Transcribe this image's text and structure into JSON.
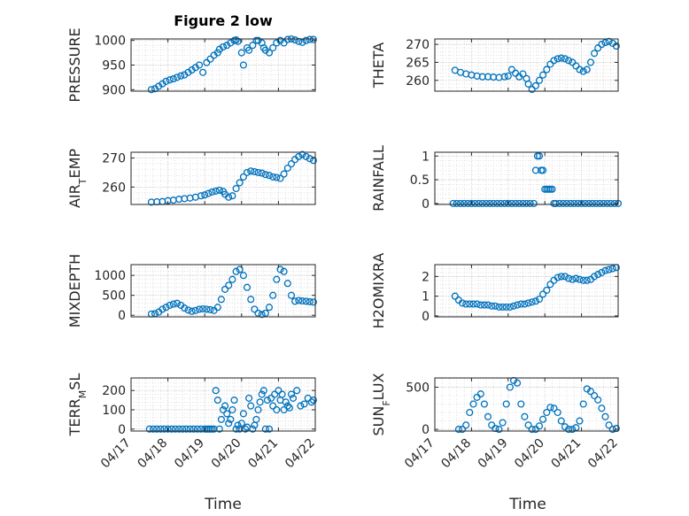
{
  "figure": {
    "title": "Figure 2 low",
    "marker_color": "#0072BD",
    "grid": "on (major and minor, dotted)",
    "x_axis": {
      "label": "Time",
      "range": [
        "04/17",
        "04/22"
      ],
      "ticks": [
        "04/17",
        "04/18",
        "04/19",
        "04/20",
        "04/21",
        "04/22"
      ]
    }
  },
  "chart_data": [
    {
      "type": "scatter",
      "ylabel": "PRESSURE",
      "ylim": [
        897,
        1003
      ],
      "yticks": [
        900,
        950,
        1000
      ],
      "x": [
        0.55,
        0.65,
        0.75,
        0.85,
        0.95,
        1.05,
        1.15,
        1.25,
        1.35,
        1.45,
        1.55,
        1.65,
        1.75,
        1.85,
        1.95,
        2.05,
        2.15,
        2.25,
        2.35,
        2.4,
        2.5,
        2.6,
        2.7,
        2.8,
        2.85,
        2.9,
        3.0,
        3.05,
        3.15,
        3.2,
        3.3,
        3.4,
        3.45,
        3.55,
        3.6,
        3.65,
        3.75,
        3.85,
        3.95,
        4.05,
        4.15,
        4.25,
        4.35,
        4.45,
        4.55,
        4.65,
        4.75,
        4.85,
        4.95
      ],
      "y": [
        900,
        902,
        907,
        912,
        917,
        920,
        922,
        925,
        928,
        930,
        935,
        940,
        945,
        950,
        935,
        955,
        962,
        970,
        975,
        982,
        987,
        990,
        995,
        1000,
        1001,
        998,
        975,
        950,
        985,
        980,
        990,
        1000,
        1000,
        995,
        985,
        980,
        975,
        985,
        995,
        1000,
        995,
        1002,
        1003,
        1001,
        998,
        996,
        1000,
        1002,
        1002
      ]
    },
    {
      "type": "scatter",
      "ylabel": "THETA",
      "ylim": [
        257,
        271.5
      ],
      "yticks": [
        260,
        265,
        270
      ],
      "x": [
        0.55,
        0.7,
        0.85,
        1.0,
        1.15,
        1.3,
        1.45,
        1.6,
        1.75,
        1.9,
        2.0,
        2.1,
        2.2,
        2.3,
        2.4,
        2.5,
        2.55,
        2.65,
        2.75,
        2.85,
        2.95,
        3.05,
        3.15,
        3.25,
        3.35,
        3.45,
        3.55,
        3.65,
        3.75,
        3.85,
        3.95,
        4.05,
        4.15,
        4.25,
        4.35,
        4.45,
        4.55,
        4.65,
        4.75,
        4.85,
        4.95
      ],
      "y": [
        262.8,
        262.2,
        261.8,
        261.5,
        261.2,
        261.0,
        261.0,
        260.9,
        260.8,
        261.0,
        261.2,
        263.0,
        262.0,
        261.0,
        261.8,
        260.5,
        259.0,
        257.5,
        258.5,
        260.0,
        261.5,
        263.0,
        264.5,
        265.5,
        266.0,
        266.2,
        266.0,
        265.5,
        265.0,
        264.0,
        263.0,
        262.5,
        263.0,
        265.0,
        267.5,
        269.0,
        270.0,
        270.5,
        270.8,
        270.3,
        269.5
      ]
    },
    {
      "type": "scatter",
      "ylabel": "AIR_TEMP",
      "ylim": [
        254,
        272
      ],
      "yticks": [
        260,
        270
      ],
      "x": [
        0.55,
        0.7,
        0.85,
        1.0,
        1.15,
        1.3,
        1.45,
        1.6,
        1.75,
        1.9,
        2.0,
        2.1,
        2.2,
        2.3,
        2.4,
        2.5,
        2.55,
        2.65,
        2.75,
        2.85,
        2.95,
        3.05,
        3.15,
        3.25,
        3.35,
        3.45,
        3.55,
        3.65,
        3.75,
        3.85,
        3.95,
        4.05,
        4.15,
        4.25,
        4.35,
        4.45,
        4.55,
        4.65,
        4.75,
        4.85,
        4.95
      ],
      "y": [
        254.8,
        254.9,
        255.0,
        255.3,
        255.5,
        255.8,
        256.0,
        256.2,
        256.5,
        257.0,
        257.3,
        257.8,
        258.3,
        258.6,
        258.9,
        258.5,
        257.5,
        256.5,
        257.0,
        259.5,
        261.5,
        263.5,
        265.0,
        265.5,
        265.3,
        265.0,
        264.8,
        264.3,
        264.0,
        263.5,
        263.3,
        263.0,
        264.5,
        266.5,
        268.0,
        269.5,
        270.5,
        271.2,
        270.5,
        269.8,
        269.2
      ]
    },
    {
      "type": "scatter",
      "ylabel": "RAINFALL",
      "ylim": [
        -0.02,
        1.08
      ],
      "yticks": [
        0,
        0.5,
        1
      ],
      "x": [
        0.5,
        0.6,
        0.7,
        0.8,
        0.9,
        1.0,
        1.1,
        1.2,
        1.3,
        1.4,
        1.5,
        1.6,
        1.7,
        1.8,
        1.9,
        2.0,
        2.1,
        2.2,
        2.3,
        2.4,
        2.5,
        2.6,
        2.7,
        2.75,
        2.8,
        2.85,
        2.9,
        2.95,
        3.0,
        3.05,
        3.1,
        3.15,
        3.2,
        3.25,
        3.3,
        3.4,
        3.5,
        3.6,
        3.7,
        3.8,
        3.9,
        4.0,
        4.1,
        4.2,
        4.3,
        4.4,
        4.5,
        4.6,
        4.7,
        4.8,
        4.9,
        5.0
      ],
      "y": [
        0,
        0,
        0,
        0,
        0,
        0,
        0,
        0,
        0,
        0,
        0,
        0,
        0,
        0,
        0,
        0,
        0,
        0,
        0,
        0,
        0,
        0,
        0,
        0.7,
        1.0,
        1.0,
        0.7,
        0.7,
        0.3,
        0.3,
        0.3,
        0.3,
        0.3,
        0,
        0,
        0,
        0,
        0,
        0,
        0,
        0,
        0,
        0,
        0,
        0,
        0,
        0,
        0,
        0,
        0,
        0,
        0
      ]
    },
    {
      "type": "scatter",
      "ylabel": "MIXDEPTH",
      "ylim": [
        -40,
        1270
      ],
      "yticks": [
        0,
        500,
        1000
      ],
      "x": [
        0.55,
        0.65,
        0.75,
        0.85,
        0.95,
        1.05,
        1.15,
        1.25,
        1.35,
        1.45,
        1.55,
        1.65,
        1.75,
        1.85,
        1.95,
        2.05,
        2.15,
        2.25,
        2.35,
        2.45,
        2.55,
        2.65,
        2.75,
        2.85,
        2.95,
        3.05,
        3.15,
        3.25,
        3.35,
        3.45,
        3.55,
        3.65,
        3.75,
        3.85,
        3.95,
        4.05,
        4.15,
        4.25,
        4.35,
        4.45,
        4.55,
        4.65,
        4.75,
        4.85,
        4.95
      ],
      "y": [
        30,
        40,
        80,
        150,
        200,
        250,
        280,
        300,
        250,
        180,
        130,
        100,
        120,
        150,
        160,
        150,
        140,
        120,
        200,
        400,
        650,
        750,
        900,
        1100,
        1150,
        1000,
        700,
        400,
        150,
        50,
        20,
        50,
        200,
        500,
        900,
        1150,
        1100,
        800,
        500,
        350,
        370,
        360,
        350,
        340,
        330
      ]
    },
    {
      "type": "scatter",
      "ylabel": "H2OMIXRA",
      "ylim": [
        -0.05,
        2.6
      ],
      "yticks": [
        0,
        1,
        2
      ],
      "x": [
        0.55,
        0.65,
        0.75,
        0.85,
        0.95,
        1.05,
        1.15,
        1.25,
        1.35,
        1.45,
        1.55,
        1.65,
        1.75,
        1.85,
        1.95,
        2.05,
        2.15,
        2.25,
        2.35,
        2.45,
        2.55,
        2.65,
        2.75,
        2.85,
        2.95,
        3.05,
        3.15,
        3.25,
        3.35,
        3.45,
        3.55,
        3.65,
        3.75,
        3.85,
        3.95,
        4.05,
        4.15,
        4.25,
        4.35,
        4.45,
        4.55,
        4.65,
        4.75,
        4.85,
        4.95
      ],
      "y": [
        1.0,
        0.8,
        0.65,
        0.6,
        0.6,
        0.6,
        0.6,
        0.55,
        0.55,
        0.55,
        0.5,
        0.5,
        0.45,
        0.45,
        0.45,
        0.45,
        0.5,
        0.55,
        0.6,
        0.6,
        0.65,
        0.7,
        0.75,
        0.85,
        1.1,
        1.3,
        1.6,
        1.8,
        1.95,
        2.0,
        2.0,
        1.9,
        1.85,
        1.9,
        1.85,
        1.8,
        1.8,
        1.85,
        2.0,
        2.1,
        2.2,
        2.3,
        2.35,
        2.4,
        2.45
      ]
    },
    {
      "type": "scatter",
      "ylabel": "TERR_MSL",
      "ylim": [
        -10,
        265
      ],
      "yticks": [
        0,
        100,
        200
      ],
      "x": [
        0.5,
        0.6,
        0.7,
        0.8,
        0.9,
        1.0,
        1.1,
        1.2,
        1.3,
        1.4,
        1.5,
        1.6,
        1.7,
        1.8,
        1.9,
        2.0,
        2.05,
        2.1,
        2.15,
        2.2,
        2.25,
        2.3,
        2.35,
        2.4,
        2.45,
        2.5,
        2.55,
        2.6,
        2.65,
        2.7,
        2.75,
        2.8,
        2.85,
        2.9,
        2.95,
        3.0,
        3.05,
        3.1,
        3.15,
        3.2,
        3.25,
        3.3,
        3.35,
        3.4,
        3.45,
        3.5,
        3.55,
        3.6,
        3.65,
        3.7,
        3.75,
        3.8,
        3.85,
        3.9,
        3.95,
        4.0,
        4.05,
        4.1,
        4.15,
        4.2,
        4.25,
        4.3,
        4.35,
        4.4,
        4.5,
        4.6,
        4.7,
        4.8,
        4.9,
        4.95
      ],
      "y": [
        0,
        0,
        0,
        0,
        0,
        0,
        0,
        0,
        0,
        0,
        0,
        0,
        0,
        0,
        0,
        0,
        0,
        0,
        0,
        0,
        0,
        200,
        150,
        0,
        50,
        100,
        120,
        80,
        30,
        50,
        100,
        150,
        0,
        20,
        0,
        30,
        80,
        0,
        10,
        160,
        120,
        0,
        20,
        50,
        100,
        140,
        180,
        200,
        0,
        150,
        0,
        160,
        120,
        180,
        100,
        200,
        150,
        180,
        100,
        140,
        120,
        110,
        180,
        160,
        200,
        120,
        130,
        160,
        140,
        150
      ]
    },
    {
      "type": "scatter",
      "ylabel": "SUN_FLUX",
      "ylim": [
        -20,
        610
      ],
      "yticks": [
        0,
        500
      ],
      "x": [
        0.65,
        0.75,
        0.85,
        0.95,
        1.05,
        1.15,
        1.25,
        1.35,
        1.45,
        1.55,
        1.65,
        1.75,
        1.85,
        1.95,
        2.05,
        2.15,
        2.25,
        2.35,
        2.45,
        2.55,
        2.65,
        2.75,
        2.85,
        2.95,
        3.05,
        3.15,
        3.25,
        3.35,
        3.45,
        3.55,
        3.65,
        3.75,
        3.85,
        3.95,
        4.05,
        4.15,
        4.25,
        4.35,
        4.45,
        4.55,
        4.65,
        4.75,
        4.85,
        4.95
      ],
      "y": [
        0,
        0,
        50,
        200,
        300,
        380,
        420,
        300,
        150,
        50,
        10,
        0,
        80,
        300,
        500,
        580,
        550,
        300,
        150,
        50,
        0,
        0,
        40,
        120,
        200,
        260,
        250,
        200,
        100,
        30,
        0,
        0,
        20,
        100,
        300,
        480,
        450,
        400,
        350,
        250,
        150,
        50,
        0,
        10
      ]
    }
  ]
}
